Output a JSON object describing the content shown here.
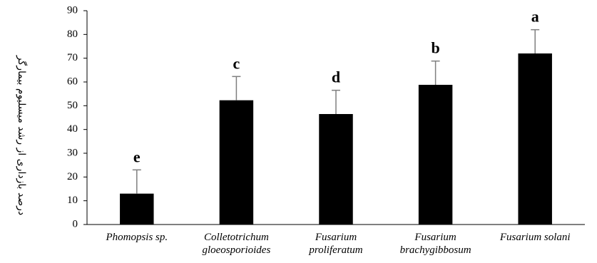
{
  "chart_data": {
    "type": "bar",
    "title": "",
    "xlabel": "",
    "ylabel": "درصد بازداری از رشد میسلیوم بیمارگر",
    "ylim": [
      0,
      90
    ],
    "y_ticks": [
      0,
      10,
      20,
      30,
      40,
      50,
      60,
      70,
      80,
      90
    ],
    "grid": false,
    "legend": "none",
    "categories": [
      [
        "Phomopsis sp."
      ],
      [
        "Colletotrichum",
        "gloeosporioides"
      ],
      [
        "Fusarium",
        "proliferatum"
      ],
      [
        "Fusarium",
        "brachygibbosum"
      ],
      [
        "Fusarium solani"
      ]
    ],
    "values": [
      13,
      52.3,
      46.5,
      58.8,
      72
    ],
    "errors": [
      10,
      10,
      10,
      10,
      10
    ],
    "significance_letters": [
      "e",
      "c",
      "d",
      "b",
      "a"
    ],
    "colors": {
      "bar": "#000000",
      "error_bar": "#7f7f7f",
      "axis": "#000000"
    }
  }
}
